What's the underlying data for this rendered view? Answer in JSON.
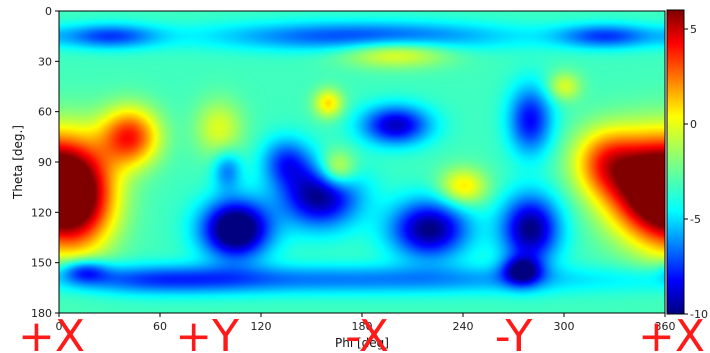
{
  "chart_data": {
    "type": "heatmap",
    "title": "",
    "xlabel": "Phi [deg]",
    "ylabel": "Theta [deg.]",
    "xlim": [
      0,
      360
    ],
    "ylim": [
      180,
      0
    ],
    "x_ticks": [
      0,
      60,
      120,
      180,
      240,
      300,
      360
    ],
    "x_tick_labels": [
      "0",
      "60",
      "120",
      "180",
      "240",
      "300",
      "360"
    ],
    "y_ticks": [
      0,
      30,
      60,
      90,
      120,
      150,
      180
    ],
    "y_tick_labels": [
      "0",
      "30",
      "60",
      "90",
      "120",
      "150",
      "180"
    ],
    "colormap": "jet",
    "colorbar_range": [
      -10,
      6
    ],
    "colorbar_ticks": [
      5,
      0,
      -5,
      -10
    ],
    "colorbar_tick_labels": [
      "5",
      "0",
      "-5",
      "-10"
    ],
    "background_level": -3,
    "blobs": [
      {
        "phi": 10,
        "theta": 110,
        "amp": 9,
        "sphi": 16,
        "stheta": 22
      },
      {
        "phi": 42,
        "theta": 75,
        "amp": 6.5,
        "sphi": 12,
        "stheta": 12
      },
      {
        "phi": 350,
        "theta": 105,
        "amp": 9,
        "sphi": 18,
        "stheta": 20
      },
      {
        "phi": 325,
        "theta": 90,
        "amp": 5,
        "sphi": 14,
        "stheta": 14
      },
      {
        "phi": 105,
        "theta": 130,
        "amp": -9,
        "sphi": 14,
        "stheta": 12
      },
      {
        "phi": 155,
        "theta": 110,
        "amp": -7,
        "sphi": 16,
        "stheta": 13
      },
      {
        "phi": 135,
        "theta": 90,
        "amp": -4,
        "sphi": 10,
        "stheta": 10
      },
      {
        "phi": 200,
        "theta": 68,
        "amp": -6,
        "sphi": 14,
        "stheta": 8
      },
      {
        "phi": 220,
        "theta": 130,
        "amp": -7,
        "sphi": 16,
        "stheta": 12
      },
      {
        "phi": 280,
        "theta": 130,
        "amp": -7,
        "sphi": 12,
        "stheta": 14
      },
      {
        "phi": 280,
        "theta": 65,
        "amp": -5,
        "sphi": 9,
        "stheta": 14
      },
      {
        "phi": 180,
        "theta": 15,
        "amp": -4,
        "sphi": 60,
        "stheta": 6
      },
      {
        "phi": 30,
        "theta": 15,
        "amp": -4,
        "sphi": 20,
        "stheta": 5
      },
      {
        "phi": 325,
        "theta": 15,
        "amp": -4,
        "sphi": 20,
        "stheta": 5
      },
      {
        "phi": 180,
        "theta": 160,
        "amp": -3,
        "sphi": 100,
        "stheta": 6
      },
      {
        "phi": 60,
        "theta": 160,
        "amp": -3,
        "sphi": 40,
        "stheta": 6
      },
      {
        "phi": 200,
        "theta": 25,
        "amp": 3,
        "sphi": 22,
        "stheta": 6
      },
      {
        "phi": 165,
        "theta": 95,
        "amp": 4,
        "sphi": 8,
        "stheta": 8
      },
      {
        "phi": 160,
        "theta": 55,
        "amp": 3.5,
        "sphi": 6,
        "stheta": 6
      },
      {
        "phi": 240,
        "theta": 105,
        "amp": 3.5,
        "sphi": 10,
        "stheta": 8
      },
      {
        "phi": 300,
        "theta": 45,
        "amp": 2.5,
        "sphi": 7,
        "stheta": 6
      },
      {
        "phi": 95,
        "theta": 70,
        "amp": 2.5,
        "sphi": 10,
        "stheta": 12
      },
      {
        "phi": 275,
        "theta": 155,
        "amp": -6,
        "sphi": 8,
        "stheta": 6
      },
      {
        "phi": 15,
        "theta": 155,
        "amp": -4,
        "sphi": 10,
        "stheta": 5
      },
      {
        "phi": 100,
        "theta": 95,
        "amp": -3,
        "sphi": 6,
        "stheta": 8
      }
    ]
  },
  "face_labels": [
    {
      "text": "+X",
      "phi": 8
    },
    {
      "text": "+Y",
      "phi": 88
    },
    {
      "text": "-X",
      "phi": 183
    },
    {
      "text": "-Y",
      "phi": 270
    },
    {
      "text": "+X",
      "phi": 355
    }
  ]
}
